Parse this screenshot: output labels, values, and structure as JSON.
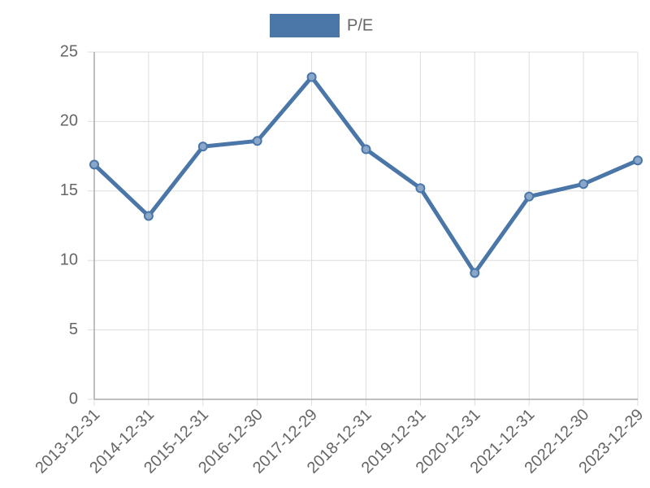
{
  "chart_data": {
    "type": "line",
    "categories": [
      "2013-12-31",
      "2014-12-31",
      "2015-12-31",
      "2016-12-30",
      "2017-12-29",
      "2018-12-31",
      "2019-12-31",
      "2020-12-31",
      "2021-12-31",
      "2022-12-30",
      "2023-12-29"
    ],
    "series": [
      {
        "name": "P/E",
        "color": "#4a76a8",
        "values": [
          16.9,
          13.2,
          18.2,
          18.6,
          23.2,
          18.0,
          15.2,
          9.1,
          14.6,
          15.5,
          17.2
        ]
      }
    ],
    "ylim": [
      0,
      25
    ],
    "yticks": [
      0,
      5,
      10,
      15,
      20,
      25
    ],
    "grid": true,
    "legend": "top"
  }
}
